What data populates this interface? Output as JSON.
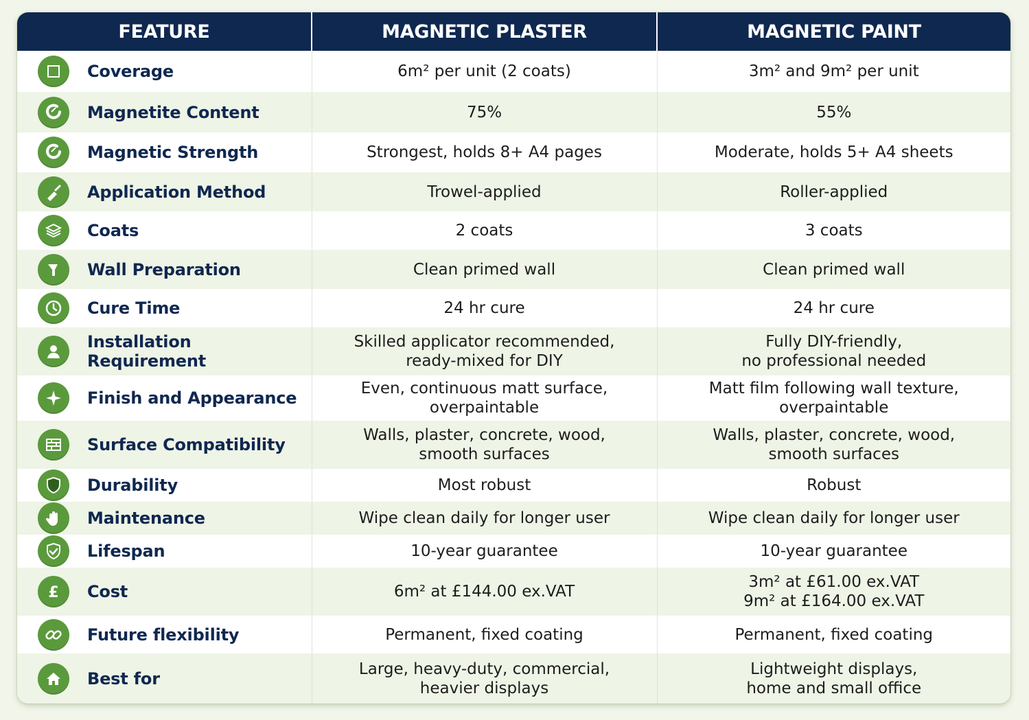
{
  "headers": {
    "feature": "FEATURE",
    "plaster": "MAGNETIC PLASTER",
    "paint": "MAGNETIC PAINT"
  },
  "rows": [
    {
      "feature": "Coverage",
      "icon": "area-icon",
      "plaster": "6m² per unit (2 coats)",
      "paint": "3m² and 9m² per unit"
    },
    {
      "feature": "Magnetite Content",
      "icon": "magnet-icon",
      "plaster": "75%",
      "paint": "55%"
    },
    {
      "feature": "Magnetic Strength",
      "icon": "magnet-icon",
      "plaster": "Strongest, holds 8+ A4 pages",
      "paint": "Moderate, holds 5+ A4 sheets"
    },
    {
      "feature": "Application Method",
      "icon": "trowel-icon",
      "plaster": "Trowel-applied",
      "paint": "Roller-applied"
    },
    {
      "feature": "Coats",
      "icon": "layers-icon",
      "plaster": "2 coats",
      "paint": "3 coats"
    },
    {
      "feature": "Wall Preparation",
      "icon": "paint-brush-icon",
      "plaster": "Clean primed wall",
      "paint": "Clean primed wall"
    },
    {
      "feature": "Cure Time",
      "icon": "clock-icon",
      "plaster": "24 hr cure",
      "paint": "24 hr cure"
    },
    {
      "feature": "Installation Requirement",
      "icon": "person-icon",
      "plaster": "Skilled applicator recommended,\nready-mixed for DIY",
      "paint": "Fully DIY-friendly,\nno professional needed"
    },
    {
      "feature": "Finish and Appearance",
      "icon": "sparkle-icon",
      "plaster": "Even, continuous matt surface,\noverpaintable",
      "paint": "Matt film following wall texture,\noverpaintable"
    },
    {
      "feature": "Surface Compatibility",
      "icon": "brick-wall-icon",
      "plaster": "Walls, plaster, concrete, wood,\nsmooth surfaces",
      "paint": "Walls, plaster, concrete, wood,\nsmooth surfaces"
    },
    {
      "feature": "Durability",
      "icon": "shield-icon",
      "plaster": "Most robust",
      "paint": "Robust"
    },
    {
      "feature": "Maintenance",
      "icon": "hand-wipe-icon",
      "plaster": "Wipe clean daily for longer user",
      "paint": "Wipe clean daily for longer user"
    },
    {
      "feature": "Lifespan",
      "icon": "shield-check-icon",
      "plaster": "10-year guarantee",
      "paint": "10-year guarantee"
    },
    {
      "feature": "Cost",
      "icon": "pound-icon",
      "plaster": "6m² at £144.00 ex.VAT",
      "paint": "3m² at £61.00 ex.VAT\n9m² at £164.00 ex.VAT"
    },
    {
      "feature": "Future flexibility",
      "icon": "link-icon",
      "plaster": "Permanent, fixed coating",
      "paint": "Permanent, fixed coating"
    },
    {
      "feature": "Best for",
      "icon": "home-icon",
      "plaster": "Large, heavy-duty, commercial,\nheavier displays",
      "paint": "Lightweight displays,\nhome and small office"
    }
  ],
  "colors": {
    "header_bg": "#0f2850",
    "icon_green": "#5a9a3c",
    "row_alt": "#eef4e6",
    "label_navy": "#0f2850"
  }
}
